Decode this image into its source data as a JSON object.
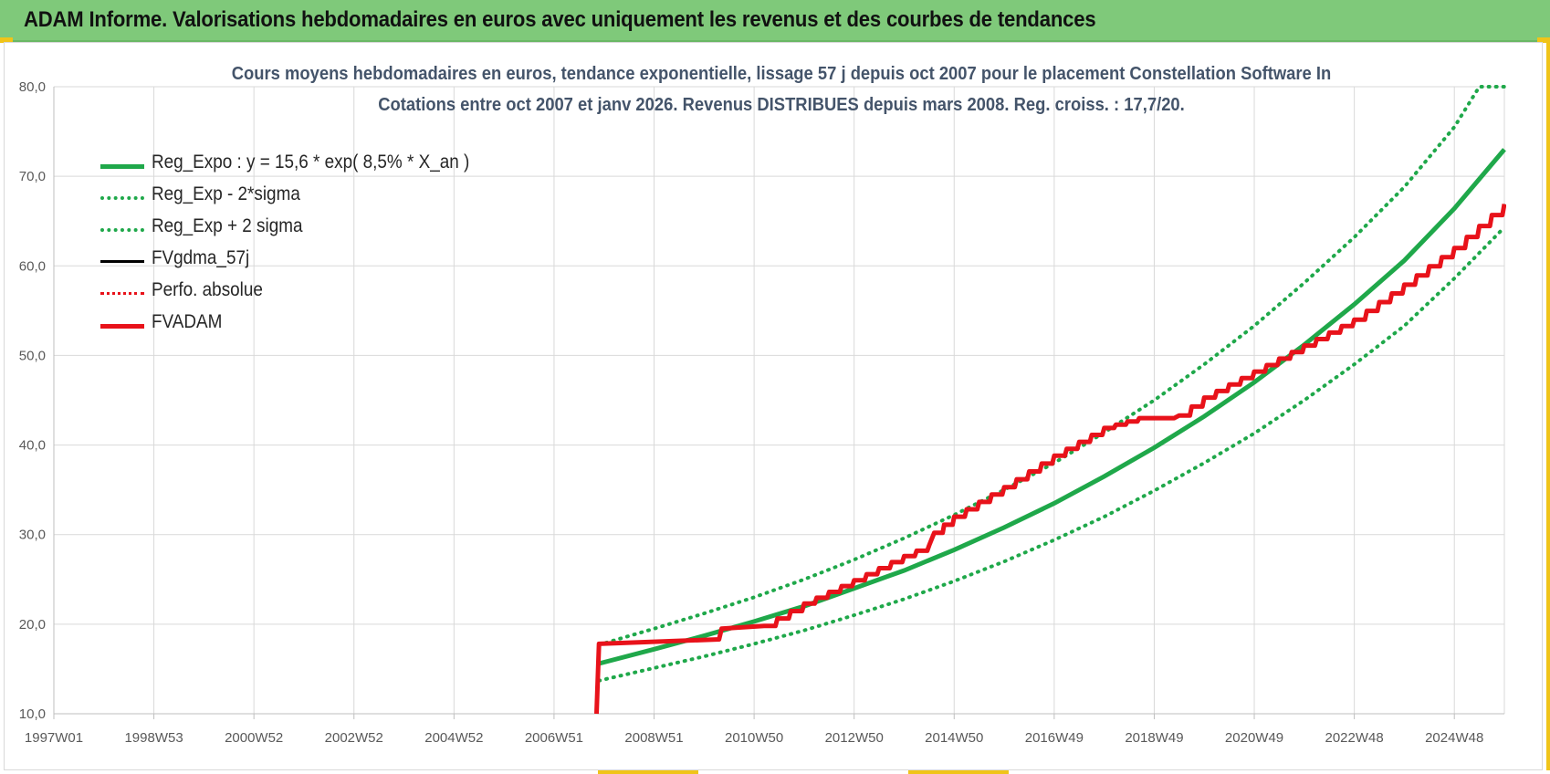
{
  "header": {
    "title": "ADAM Informe. Valorisations hebdomadaires en euros avec uniquement les revenus et des courbes de tendances"
  },
  "chart_data": {
    "type": "line",
    "title_line1": "Cours moyens hebdomadaires en euros, tendance exponentielle, lissage 57 j depuis oct 2007 pour le placement Constellation Software In",
    "title_line2": "Cotations entre oct 2007 et janv 2026. Revenus DISTRIBUES depuis mars 2008. Reg. croiss. : 17,7/20.",
    "x_tick_labels": [
      "1997W01",
      "1998W53",
      "2000W52",
      "2002W52",
      "2004W52",
      "2006W51",
      "2008W51",
      "2010W50",
      "2012W50",
      "2014W50",
      "2016W49",
      "2018W49",
      "2020W49",
      "2022W48",
      "2024W48"
    ],
    "x_tick_years": [
      1997.0,
      1999.0,
      2001.0,
      2003.0,
      2005.0,
      2007.0,
      2009.0,
      2011.0,
      2013.0,
      2015.0,
      2017.0,
      2019.0,
      2021.0,
      2023.0,
      2025.0
    ],
    "xlim": [
      1997.0,
      2026.0
    ],
    "y_tick_labels": [
      "10,0",
      "20,0",
      "30,0",
      "40,0",
      "50,0",
      "60,0",
      "70,0",
      "80,0"
    ],
    "ylim": [
      10,
      80
    ],
    "grid": true,
    "legend_position": "top-left",
    "colors": {
      "green": "#1fa84a",
      "red": "#e8121a",
      "black": "#000000",
      "header_bg": "#7fc97a",
      "title": "#44546a"
    },
    "series": [
      {
        "name": "Reg_Expo : y = 15,6 * exp( 8,5% *  X_an )",
        "style": "solid-green-thick",
        "x": [
          2007.9,
          2009,
          2010,
          2011,
          2012,
          2013,
          2014,
          2015,
          2016,
          2017,
          2018,
          2019,
          2020,
          2021,
          2022,
          2023,
          2024,
          2025,
          2026
        ],
        "y": [
          15.6,
          17.2,
          18.7,
          20.3,
          22.0,
          24.0,
          26.0,
          28.3,
          30.8,
          33.5,
          36.5,
          39.7,
          43.2,
          47.0,
          51.2,
          55.7,
          60.6,
          66.4,
          73.0
        ]
      },
      {
        "name": "Reg_Exp - 2*sigma",
        "style": "dotted-green",
        "x": [
          2007.9,
          2009,
          2010,
          2011,
          2012,
          2013,
          2014,
          2015,
          2016,
          2017,
          2018,
          2019,
          2020,
          2021,
          2022,
          2023,
          2024,
          2025,
          2026
        ],
        "y": [
          13.7,
          15.1,
          16.4,
          17.8,
          19.3,
          21.0,
          22.8,
          24.8,
          27.0,
          29.4,
          32.0,
          34.9,
          38.0,
          41.3,
          45.0,
          49.0,
          53.3,
          58.6,
          64.3
        ]
      },
      {
        "name": "Reg_Exp + 2 sigma",
        "style": "dotted-green",
        "x": [
          2007.9,
          2009,
          2010,
          2011,
          2012,
          2013,
          2014,
          2015,
          2016,
          2017,
          2018,
          2019,
          2020,
          2021,
          2022,
          2023,
          2024,
          2025,
          2025.5,
          2026
        ],
        "y": [
          17.7,
          19.5,
          21.2,
          23.0,
          25.0,
          27.2,
          29.6,
          32.2,
          35.0,
          38.0,
          41.4,
          45.0,
          49.0,
          53.3,
          58.1,
          63.2,
          68.8,
          75.5,
          80.0,
          80.0
        ]
      },
      {
        "name": "FVgdma_57j",
        "style": "solid-black",
        "x": [
          2007.85,
          2007.9,
          2010.3,
          2010.35,
          2011.2,
          2012.0,
          2013.0,
          2014.0,
          2014.5,
          2014.6,
          2015.0,
          2016.0,
          2017.0,
          2018.0,
          2018.7,
          2019.4,
          2019.5,
          2020.0,
          2021.0,
          2022.0,
          2023.0,
          2024.0,
          2025.0,
          2026.0
        ],
        "y": [
          10.0,
          17.8,
          18.3,
          19.5,
          19.8,
          22.3,
          24.9,
          27.6,
          28.8,
          30.2,
          32.0,
          35.3,
          38.8,
          41.9,
          43.0,
          43.0,
          43.3,
          45.3,
          48.2,
          51.1,
          54.0,
          57.9,
          62.0,
          66.9
        ]
      },
      {
        "name": "Perfo. absolue",
        "style": "dotted-red",
        "x": [],
        "y": []
      },
      {
        "name": "FVADAM",
        "style": "solid-red-thick",
        "x": [
          2007.85,
          2007.9,
          2010.3,
          2010.35,
          2011.2,
          2012.0,
          2013.0,
          2014.0,
          2014.5,
          2014.6,
          2015.0,
          2016.0,
          2017.0,
          2018.0,
          2018.7,
          2019.4,
          2019.5,
          2020.0,
          2021.0,
          2022.0,
          2023.0,
          2024.0,
          2025.0,
          2026.0
        ],
        "y": [
          10.0,
          17.8,
          18.3,
          19.5,
          19.8,
          22.3,
          24.9,
          27.6,
          28.8,
          30.2,
          32.0,
          35.3,
          38.8,
          41.9,
          43.0,
          43.0,
          43.3,
          45.3,
          48.2,
          51.1,
          54.0,
          57.9,
          62.0,
          66.9
        ]
      }
    ]
  }
}
